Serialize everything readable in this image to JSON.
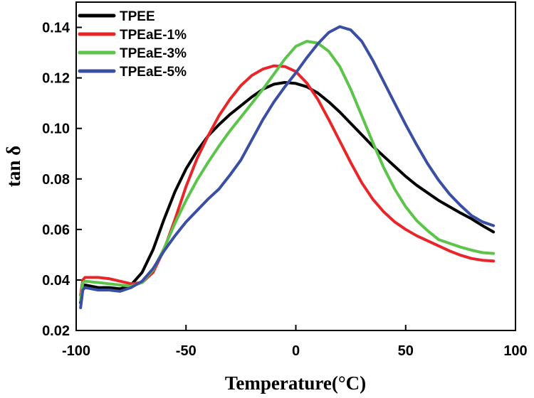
{
  "chart_data": {
    "type": "line",
    "title": "",
    "xlabel": "Temperature(°C)",
    "ylabel": "tan δ",
    "xlim": [
      -100,
      100
    ],
    "ylim": [
      0.02,
      0.15
    ],
    "xticks": [
      -100,
      -50,
      0,
      50,
      100
    ],
    "xtick_labels": [
      "-100",
      "-50",
      "0",
      "50",
      "100"
    ],
    "yticks": [
      0.02,
      0.04,
      0.06,
      0.08,
      0.1,
      0.12,
      0.14
    ],
    "ytick_labels": [
      "0.02",
      "0.04",
      "0.06",
      "0.08",
      "0.10",
      "0.12",
      "0.14"
    ],
    "grid": false,
    "legend_position": "top-left",
    "series": [
      {
        "name": "TPEE",
        "color": "#000000",
        "x": [
          -98,
          -97,
          -96,
          -90,
          -85,
          -80,
          -75,
          -70,
          -65,
          -60,
          -55,
          -50,
          -45,
          -40,
          -35,
          -30,
          -25,
          -20,
          -15,
          -10,
          -5,
          0,
          5,
          10,
          15,
          20,
          25,
          30,
          35,
          40,
          45,
          50,
          55,
          60,
          65,
          70,
          75,
          80,
          85,
          90
        ],
        "y": [
          0.031,
          0.037,
          0.038,
          0.037,
          0.037,
          0.0365,
          0.038,
          0.043,
          0.052,
          0.064,
          0.075,
          0.084,
          0.091,
          0.097,
          0.1015,
          0.1055,
          0.109,
          0.1125,
          0.1155,
          0.1175,
          0.1182,
          0.1178,
          0.1165,
          0.114,
          0.1105,
          0.1065,
          0.102,
          0.0975,
          0.093,
          0.089,
          0.085,
          0.081,
          0.0775,
          0.0745,
          0.0715,
          0.069,
          0.0665,
          0.0642,
          0.0615,
          0.059
        ]
      },
      {
        "name": "TPEaE-1%",
        "color": "#e8262a",
        "x": [
          -98,
          -97,
          -96,
          -90,
          -85,
          -80,
          -75,
          -70,
          -65,
          -60,
          -55,
          -50,
          -45,
          -40,
          -35,
          -30,
          -25,
          -20,
          -15,
          -10,
          -5,
          0,
          5,
          10,
          15,
          20,
          25,
          30,
          35,
          40,
          45,
          50,
          55,
          60,
          65,
          70,
          75,
          80,
          85,
          90
        ],
        "y": [
          0.034,
          0.04,
          0.041,
          0.041,
          0.0405,
          0.0395,
          0.0385,
          0.039,
          0.043,
          0.052,
          0.064,
          0.077,
          0.088,
          0.097,
          0.105,
          0.1115,
          0.117,
          0.121,
          0.1235,
          0.1248,
          0.1245,
          0.1225,
          0.118,
          0.1115,
          0.1035,
          0.095,
          0.0865,
          0.0785,
          0.072,
          0.067,
          0.063,
          0.06,
          0.0575,
          0.0555,
          0.0535,
          0.0515,
          0.0498,
          0.0485,
          0.0478,
          0.0475
        ]
      },
      {
        "name": "TPEaE-3%",
        "color": "#5dc44b",
        "x": [
          -98,
          -97,
          -96,
          -90,
          -85,
          -80,
          -75,
          -70,
          -65,
          -60,
          -55,
          -50,
          -45,
          -40,
          -35,
          -30,
          -25,
          -20,
          -15,
          -10,
          -5,
          0,
          5,
          10,
          15,
          20,
          25,
          30,
          35,
          40,
          45,
          50,
          55,
          60,
          65,
          70,
          75,
          80,
          85,
          90
        ],
        "y": [
          0.032,
          0.039,
          0.0395,
          0.039,
          0.0385,
          0.038,
          0.0375,
          0.039,
          0.044,
          0.0525,
          0.0625,
          0.0715,
          0.0795,
          0.0865,
          0.093,
          0.099,
          0.1045,
          0.11,
          0.1155,
          0.1215,
          0.1275,
          0.1325,
          0.1345,
          0.1338,
          0.1305,
          0.1245,
          0.1155,
          0.105,
          0.0945,
          0.0845,
          0.076,
          0.069,
          0.0635,
          0.0595,
          0.056,
          0.0545,
          0.053,
          0.0518,
          0.0508,
          0.0505
        ]
      },
      {
        "name": "TPEaE-5%",
        "color": "#3a4fa3",
        "x": [
          -98,
          -97,
          -96,
          -90,
          -85,
          -80,
          -75,
          -70,
          -65,
          -60,
          -55,
          -50,
          -45,
          -40,
          -35,
          -30,
          -25,
          -20,
          -15,
          -10,
          -5,
          0,
          5,
          10,
          15,
          20,
          25,
          30,
          35,
          40,
          45,
          50,
          55,
          60,
          65,
          70,
          75,
          80,
          85,
          90
        ],
        "y": [
          0.029,
          0.036,
          0.037,
          0.036,
          0.036,
          0.0355,
          0.037,
          0.0395,
          0.0445,
          0.0515,
          0.0575,
          0.063,
          0.0675,
          0.072,
          0.076,
          0.0815,
          0.0875,
          0.0955,
          0.1035,
          0.1105,
          0.1165,
          0.122,
          0.128,
          0.1335,
          0.138,
          0.1403,
          0.139,
          0.1345,
          0.127,
          0.1185,
          0.11,
          0.1015,
          0.0935,
          0.086,
          0.0795,
          0.074,
          0.0695,
          0.0655,
          0.063,
          0.0615
        ]
      }
    ]
  }
}
